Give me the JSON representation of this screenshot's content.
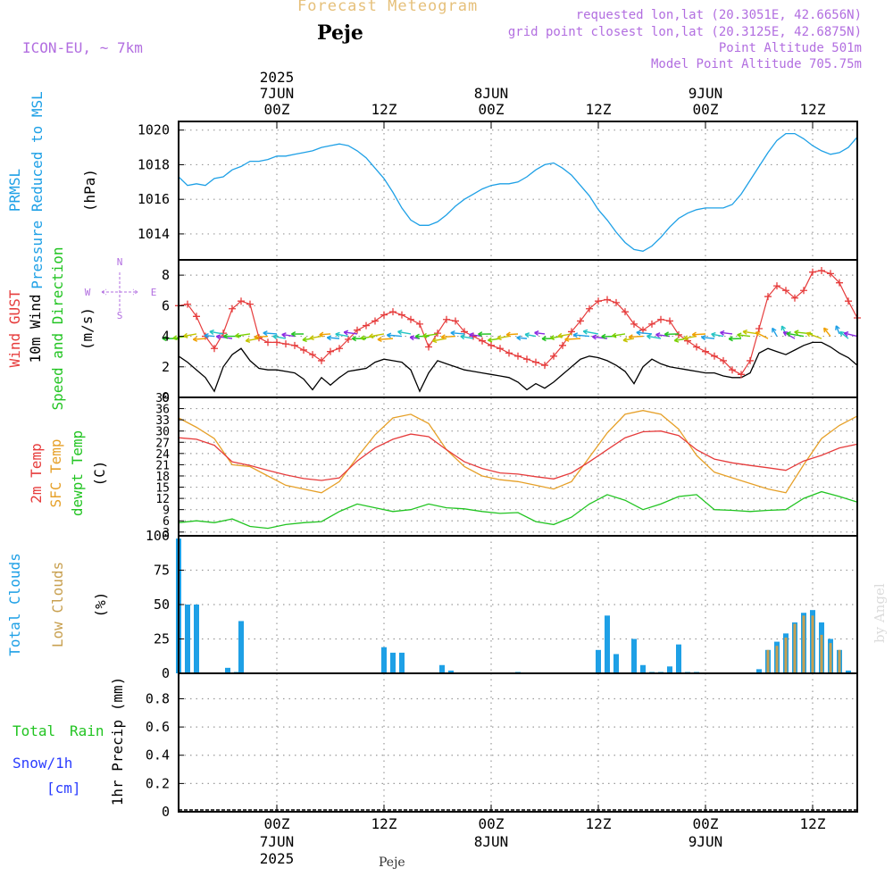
{
  "header": {
    "title": "Forecast Meteogram",
    "place": "Peje",
    "model": "ICON-EU, ~ 7km",
    "info_lines": [
      "requested lon,lat (20.3051E, 42.6656N)",
      "grid point closest lon,lat (20.3125E, 42.6875N)",
      "Point Altitude 501m",
      "Model Point Altitude 705.75m"
    ],
    "footer_place": "Peje",
    "byline": "by Angel"
  },
  "time_axis": {
    "hour_labels": [
      "00Z",
      "12Z",
      "00Z",
      "12Z",
      "00Z",
      "12Z"
    ],
    "hour_values": [
      21,
      33,
      45,
      57,
      69,
      81
    ],
    "date_labels": [
      {
        "hour": 21,
        "date": "7JUN",
        "year": "2025"
      },
      {
        "hour": 45,
        "date": "8JUN",
        "year": ""
      },
      {
        "hour": 69,
        "date": "9JUN",
        "year": ""
      }
    ],
    "xlim": [
      10,
      86
    ]
  },
  "panels": {
    "pressure": {
      "label_line1": "PRMSL",
      "label_line2": "Pressure Reduced to MSL",
      "unit": "(hPa)",
      "colors": {
        "line": "#1ea0e6"
      }
    },
    "wind": {
      "label_gust": "Wind GUST",
      "label_wind": "10m Wind",
      "label_dir": "Speed and Direction",
      "unit": "(m/s)",
      "compass": {
        "n": "N",
        "s": "S",
        "w": "W",
        "e": "E"
      },
      "colors": {
        "gust": "#e63c3c",
        "wind": "#000000",
        "dir": "#22c422",
        "compass": "#b26ee0"
      }
    },
    "temperature": {
      "label_t2m": "2m Temp",
      "label_sfc": "SFC Temp",
      "label_dew": "dewpt Temp",
      "unit": "(C)",
      "colors": {
        "t2m": "#e63c3c",
        "sfc": "#e6a028",
        "dew": "#22c422"
      }
    },
    "clouds": {
      "label_total": "Total Clouds",
      "label_low": "Low Clouds",
      "unit": "(%)",
      "colors": {
        "total": "#1ea0e6",
        "low": "#c8a050"
      }
    },
    "precip": {
      "label_rain_a": "Total",
      "label_rain_b": "Rain",
      "label_snow": "Snow/1h",
      "label_cm": "[cm]",
      "unit": "1hr Precip (mm)",
      "colors": {
        "rain": "#22c422",
        "snow": "#2a3cff"
      }
    }
  },
  "chart_data": [
    {
      "type": "line",
      "panel": "pressure",
      "ylim": [
        1012.5,
        1020.5
      ],
      "yticks": [
        1014,
        1016,
        1018,
        1020
      ],
      "series": [
        {
          "x": [
            10,
            11,
            12,
            13,
            14,
            15,
            16,
            17,
            18,
            19,
            20,
            21,
            22,
            23,
            24,
            25,
            26,
            27,
            28,
            29,
            30,
            31,
            32,
            33,
            34,
            35,
            36,
            37,
            38,
            39,
            40,
            41,
            42,
            43,
            44,
            45,
            46,
            47,
            48,
            49,
            50,
            51,
            52,
            53,
            54,
            55,
            56,
            57,
            58,
            59,
            60,
            61,
            62,
            63,
            64,
            65,
            66,
            67,
            68,
            69,
            70,
            71,
            72,
            73,
            74,
            75,
            76,
            77,
            78,
            79,
            80,
            81,
            82,
            83,
            84,
            85,
            86
          ],
          "values": [
            1017.3,
            1016.8,
            1016.9,
            1016.8,
            1017.2,
            1017.3,
            1017.7,
            1017.9,
            1018.2,
            1018.2,
            1018.3,
            1018.5,
            1018.5,
            1018.6,
            1018.7,
            1018.8,
            1019.0,
            1019.1,
            1019.2,
            1019.1,
            1018.8,
            1018.4,
            1017.8,
            1017.2,
            1016.4,
            1015.5,
            1014.8,
            1014.5,
            1014.5,
            1014.7,
            1015.1,
            1015.6,
            1016.0,
            1016.3,
            1016.6,
            1016.8,
            1016.9,
            1016.9,
            1017.0,
            1017.3,
            1017.7,
            1018.0,
            1018.1,
            1017.8,
            1017.4,
            1016.8,
            1016.2,
            1015.4,
            1014.8,
            1014.1,
            1013.5,
            1013.1,
            1013.0,
            1013.3,
            1013.8,
            1014.4,
            1014.9,
            1015.2,
            1015.4,
            1015.5,
            1015.5,
            1015.5,
            1015.7,
            1016.3,
            1017.1,
            1017.9,
            1018.7,
            1019.4,
            1019.8,
            1019.8,
            1019.5,
            1019.1,
            1018.8,
            1018.6,
            1018.7,
            1019.0,
            1019.6
          ]
        }
      ]
    },
    {
      "type": "line",
      "panel": "wind",
      "ylim": [
        0,
        9
      ],
      "yticks": [
        0,
        2,
        4,
        6,
        8
      ],
      "series": [
        {
          "name": "Wind GUST",
          "x": [
            10,
            11,
            12,
            13,
            14,
            15,
            16,
            17,
            18,
            19,
            20,
            21,
            22,
            23,
            24,
            25,
            26,
            27,
            28,
            29,
            30,
            31,
            32,
            33,
            34,
            35,
            36,
            37,
            38,
            39,
            40,
            41,
            42,
            43,
            44,
            45,
            46,
            47,
            48,
            49,
            50,
            51,
            52,
            53,
            54,
            55,
            56,
            57,
            58,
            59,
            60,
            61,
            62,
            63,
            64,
            65,
            66,
            67,
            68,
            69,
            70,
            71,
            72,
            73,
            74,
            75,
            76,
            77,
            78,
            79,
            80,
            81,
            82,
            83,
            84,
            85,
            86
          ],
          "values": [
            6.0,
            6.1,
            5.3,
            4.0,
            3.2,
            4.2,
            5.8,
            6.3,
            6.1,
            3.9,
            3.6,
            3.6,
            3.5,
            3.4,
            3.1,
            2.8,
            2.4,
            3.0,
            3.2,
            3.8,
            4.4,
            4.7,
            5.0,
            5.4,
            5.6,
            5.4,
            5.1,
            4.8,
            3.3,
            4.2,
            5.1,
            5.0,
            4.3,
            4.0,
            3.7,
            3.4,
            3.2,
            2.9,
            2.7,
            2.5,
            2.3,
            2.1,
            2.7,
            3.4,
            4.3,
            5.0,
            5.8,
            6.3,
            6.4,
            6.2,
            5.6,
            4.8,
            4.4,
            4.8,
            5.1,
            5.0,
            4.1,
            3.7,
            3.3,
            3.0,
            2.7,
            2.4,
            1.8,
            1.5,
            2.4,
            4.5,
            6.6,
            7.3,
            7.0,
            6.5,
            7.0,
            8.2,
            8.3,
            8.1,
            7.5,
            6.3,
            5.2
          ]
        },
        {
          "name": "10m Wind",
          "x": [
            10,
            11,
            12,
            13,
            14,
            15,
            16,
            17,
            18,
            19,
            20,
            21,
            22,
            23,
            24,
            25,
            26,
            27,
            28,
            29,
            30,
            31,
            32,
            33,
            34,
            35,
            36,
            37,
            38,
            39,
            40,
            41,
            42,
            43,
            44,
            45,
            46,
            47,
            48,
            49,
            50,
            51,
            52,
            53,
            54,
            55,
            56,
            57,
            58,
            59,
            60,
            61,
            62,
            63,
            64,
            65,
            66,
            67,
            68,
            69,
            70,
            71,
            72,
            73,
            74,
            75,
            76,
            77,
            78,
            79,
            80,
            81,
            82,
            83,
            84,
            85,
            86
          ],
          "values": [
            2.7,
            2.3,
            1.8,
            1.3,
            0.4,
            2.0,
            2.8,
            3.2,
            2.4,
            1.9,
            1.8,
            1.8,
            1.7,
            1.6,
            1.2,
            0.5,
            1.3,
            0.8,
            1.3,
            1.7,
            1.8,
            1.9,
            2.3,
            2.5,
            2.4,
            2.3,
            1.8,
            0.4,
            1.6,
            2.4,
            2.2,
            2.0,
            1.8,
            1.7,
            1.6,
            1.5,
            1.4,
            1.3,
            1.0,
            0.5,
            0.9,
            0.6,
            1.0,
            1.5,
            2.0,
            2.5,
            2.7,
            2.6,
            2.4,
            2.1,
            1.7,
            0.9,
            2.0,
            2.5,
            2.2,
            2.0,
            1.9,
            1.8,
            1.7,
            1.6,
            1.6,
            1.4,
            1.3,
            1.3,
            1.6,
            2.9,
            3.2,
            3.0,
            2.8,
            3.1,
            3.4,
            3.6,
            3.6,
            3.3,
            2.9,
            2.6,
            2.1
          ]
        }
      ]
    },
    {
      "type": "line",
      "panel": "temperature",
      "ylim": [
        2,
        39
      ],
      "yticks": [
        3,
        6,
        9,
        12,
        15,
        18,
        21,
        24,
        27,
        30,
        33,
        36,
        39
      ],
      "series": [
        {
          "name": "2m Temp",
          "x": [
            10,
            12,
            14,
            16,
            18,
            20,
            22,
            24,
            26,
            28,
            30,
            32,
            34,
            36,
            38,
            40,
            42,
            44,
            46,
            48,
            50,
            52,
            54,
            56,
            58,
            60,
            62,
            64,
            66,
            68,
            70,
            72,
            74,
            76,
            78,
            80,
            82,
            84,
            86
          ],
          "values": [
            28.2,
            27.8,
            26.2,
            21.8,
            20.8,
            19.5,
            18.3,
            17.3,
            16.8,
            17.5,
            22.0,
            25.5,
            27.8,
            29.2,
            28.5,
            25.0,
            21.8,
            20.0,
            18.8,
            18.5,
            17.8,
            17.2,
            18.8,
            21.8,
            25.0,
            28.2,
            29.8,
            30.0,
            28.8,
            25.0,
            22.5,
            21.5,
            20.8,
            20.2,
            19.5,
            22.0,
            23.5,
            25.5,
            26.5
          ]
        },
        {
          "name": "SFC Temp",
          "x": [
            10,
            12,
            14,
            16,
            18,
            20,
            22,
            24,
            26,
            28,
            30,
            32,
            34,
            36,
            38,
            40,
            42,
            44,
            46,
            48,
            50,
            52,
            54,
            56,
            58,
            60,
            62,
            64,
            66,
            68,
            70,
            72,
            74,
            76,
            78,
            80,
            82,
            84,
            86
          ],
          "values": [
            33.5,
            31.0,
            28.0,
            21.0,
            20.5,
            18.0,
            15.5,
            14.5,
            13.5,
            16.5,
            23.0,
            29.0,
            33.5,
            34.5,
            32.0,
            25.0,
            20.5,
            18.0,
            17.0,
            16.5,
            15.5,
            14.5,
            16.5,
            23.0,
            29.5,
            34.5,
            35.5,
            34.5,
            30.5,
            23.5,
            19.0,
            17.5,
            16.0,
            14.5,
            13.5,
            21.0,
            28.0,
            31.5,
            34.0
          ]
        },
        {
          "name": "dewpt Temp",
          "x": [
            10,
            12,
            14,
            16,
            18,
            20,
            22,
            24,
            26,
            28,
            30,
            32,
            34,
            36,
            38,
            40,
            42,
            44,
            46,
            48,
            50,
            52,
            54,
            56,
            58,
            60,
            62,
            64,
            66,
            68,
            70,
            72,
            74,
            76,
            78,
            80,
            82,
            84,
            86
          ],
          "values": [
            5.5,
            6.0,
            5.5,
            6.5,
            4.5,
            4.0,
            5.0,
            5.5,
            5.8,
            8.5,
            10.5,
            9.5,
            8.5,
            9.0,
            10.5,
            9.5,
            9.2,
            8.5,
            8.0,
            8.2,
            5.8,
            5.0,
            7.0,
            10.5,
            13.0,
            11.5,
            9.0,
            10.5,
            12.5,
            13.0,
            9.0,
            8.8,
            8.5,
            8.8,
            9.0,
            12.0,
            13.8,
            12.5,
            11.0
          ]
        }
      ]
    },
    {
      "type": "bar",
      "panel": "clouds",
      "ylim": [
        0,
        100
      ],
      "yticks": [
        0,
        25,
        50,
        75,
        100
      ],
      "x": [
        10,
        11,
        12,
        15.5,
        16.5,
        17,
        33,
        34,
        35,
        39.5,
        40.5,
        48,
        57,
        58,
        59,
        61,
        62,
        63,
        64,
        65,
        66,
        67,
        68,
        75,
        76,
        77,
        78,
        79,
        80,
        81,
        82,
        83,
        84,
        85
      ],
      "series": [
        {
          "name": "Total Clouds",
          "values": [
            98,
            50,
            50,
            4,
            1,
            38,
            19,
            15,
            15,
            6,
            2,
            1,
            17,
            42,
            14,
            25,
            6,
            1,
            1,
            5,
            21,
            1,
            1,
            3,
            17,
            23,
            29,
            37,
            44,
            46,
            37,
            25,
            17,
            2
          ]
        },
        {
          "name": "Low Clouds",
          "values": [
            0,
            0,
            0,
            0,
            0,
            0,
            0,
            0,
            0,
            0,
            0,
            0,
            0,
            0,
            0,
            0,
            0,
            0,
            0,
            0,
            0,
            0,
            0,
            0,
            17,
            20,
            26,
            36,
            42,
            42,
            28,
            22,
            17,
            0
          ]
        }
      ]
    },
    {
      "type": "line",
      "panel": "precip",
      "ylim": [
        0,
        0.98
      ],
      "yticks": [
        0,
        0.2,
        0.4,
        0.6,
        0.8
      ],
      "series": [
        {
          "values": []
        }
      ]
    }
  ]
}
